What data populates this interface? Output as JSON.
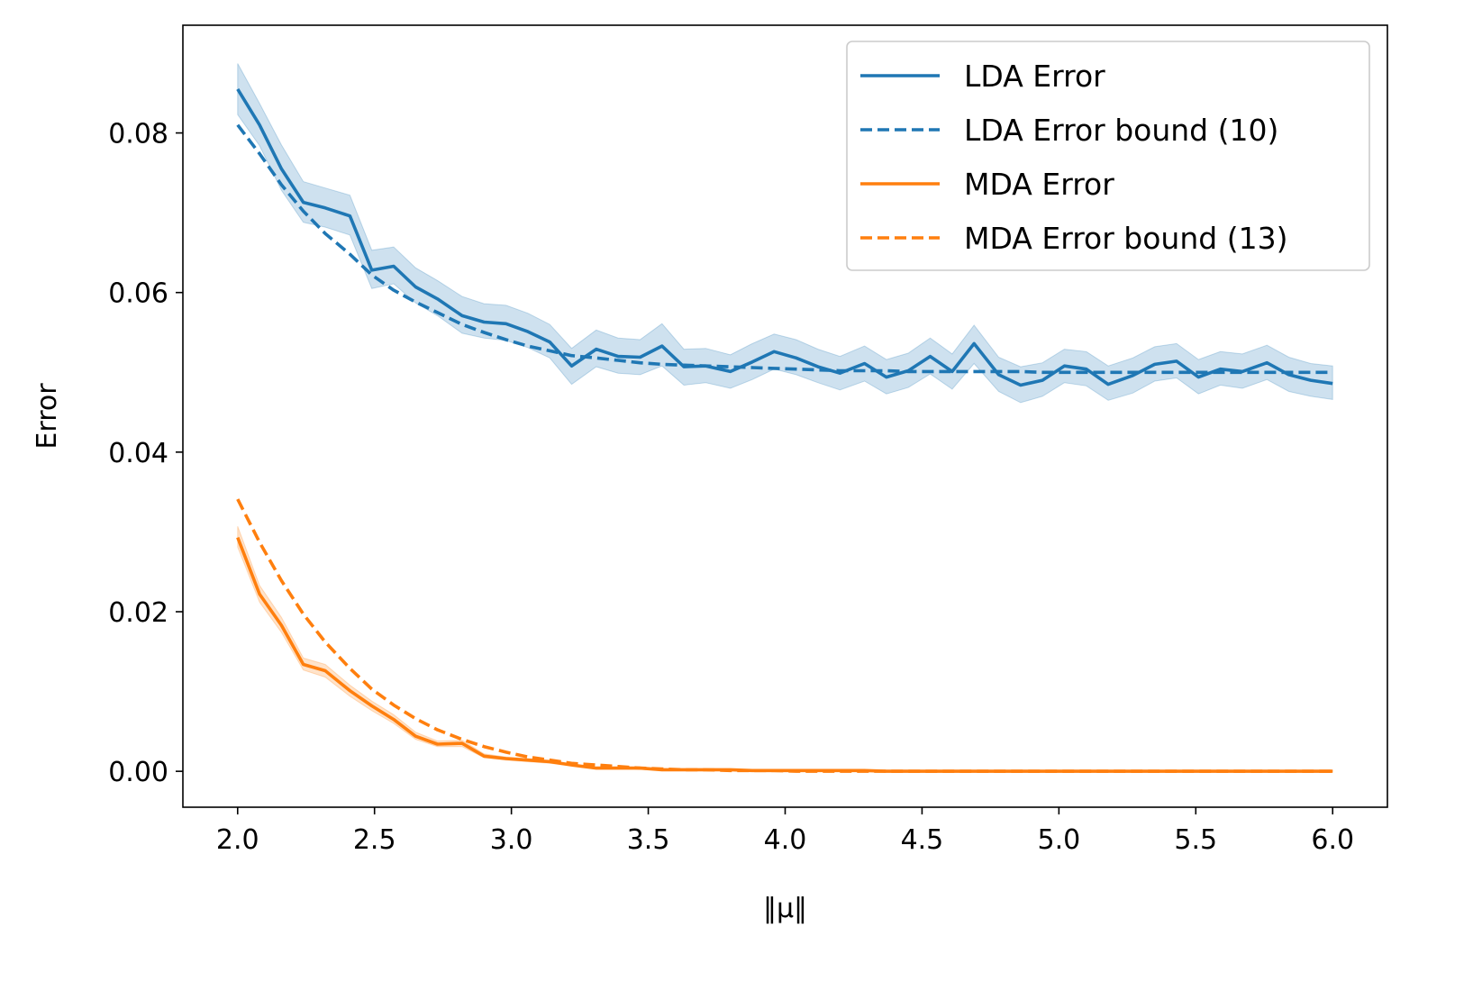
{
  "chart_data": {
    "type": "line",
    "xlabel": "‖μ‖",
    "ylabel": "Error",
    "xlim": [
      1.8,
      6.2
    ],
    "ylim": [
      -0.0045,
      0.0935
    ],
    "x_ticks": [
      "2.0",
      "2.5",
      "3.0",
      "3.5",
      "4.0",
      "4.5",
      "5.0",
      "5.5",
      "6.0"
    ],
    "x_tick_values": [
      2.0,
      2.5,
      3.0,
      3.5,
      4.0,
      4.5,
      5.0,
      5.5,
      6.0
    ],
    "y_ticks": [
      "0.00",
      "0.02",
      "0.04",
      "0.06",
      "0.08"
    ],
    "y_tick_values": [
      0.0,
      0.02,
      0.04,
      0.06,
      0.08
    ],
    "legend_position": "top-right",
    "grid": false,
    "x": [
      2.0,
      2.08,
      2.16,
      2.24,
      2.32,
      2.41,
      2.49,
      2.57,
      2.65,
      2.73,
      2.82,
      2.9,
      2.98,
      3.06,
      3.14,
      3.22,
      3.31,
      3.39,
      3.47,
      3.55,
      3.63,
      3.71,
      3.8,
      3.88,
      3.96,
      4.04,
      4.12,
      4.2,
      4.29,
      4.37,
      4.45,
      4.53,
      4.61,
      4.69,
      4.78,
      4.86,
      4.94,
      5.02,
      5.1,
      5.18,
      5.27,
      5.35,
      5.43,
      5.51,
      5.59,
      5.67,
      5.76,
      5.84,
      5.92,
      6.0
    ],
    "series": [
      {
        "name": "LDA Error",
        "color": "#1f77b4",
        "style": "solid",
        "values": [
          0.0855,
          0.081,
          0.0755,
          0.0713,
          0.0706,
          0.0696,
          0.0628,
          0.0633,
          0.0607,
          0.0592,
          0.0571,
          0.0563,
          0.0561,
          0.0551,
          0.0538,
          0.0508,
          0.0529,
          0.052,
          0.0519,
          0.0533,
          0.0507,
          0.0508,
          0.0501,
          0.0513,
          0.0526,
          0.0518,
          0.0507,
          0.0499,
          0.0511,
          0.0494,
          0.0502,
          0.052,
          0.0501,
          0.0536,
          0.0497,
          0.0484,
          0.049,
          0.0508,
          0.0504,
          0.0485,
          0.0496,
          0.051,
          0.0514,
          0.0494,
          0.0504,
          0.0501,
          0.0512,
          0.0497,
          0.049,
          0.0486
        ],
        "band_lower": [
          0.0823,
          0.0784,
          0.0728,
          0.0688,
          0.0682,
          0.0672,
          0.0605,
          0.0611,
          0.0587,
          0.0571,
          0.0549,
          0.0543,
          0.054,
          0.0531,
          0.0518,
          0.0485,
          0.0507,
          0.0499,
          0.0497,
          0.0508,
          0.0484,
          0.0487,
          0.048,
          0.0491,
          0.0504,
          0.0497,
          0.0487,
          0.0478,
          0.0489,
          0.0473,
          0.0481,
          0.0498,
          0.0479,
          0.0511,
          0.0476,
          0.0462,
          0.047,
          0.0487,
          0.0483,
          0.0465,
          0.0474,
          0.0489,
          0.0493,
          0.0473,
          0.0484,
          0.048,
          0.0491,
          0.0476,
          0.047,
          0.0466
        ],
        "band_upper": [
          0.0887,
          0.0837,
          0.0785,
          0.0739,
          0.0731,
          0.0722,
          0.0653,
          0.0657,
          0.0631,
          0.0615,
          0.0595,
          0.0586,
          0.0584,
          0.0574,
          0.056,
          0.053,
          0.0553,
          0.0543,
          0.0541,
          0.0561,
          0.0529,
          0.053,
          0.0522,
          0.0536,
          0.0548,
          0.0541,
          0.0529,
          0.052,
          0.0533,
          0.0516,
          0.0524,
          0.0543,
          0.0523,
          0.0559,
          0.0519,
          0.0507,
          0.0512,
          0.0529,
          0.0526,
          0.0508,
          0.0518,
          0.0532,
          0.0536,
          0.0516,
          0.0526,
          0.0523,
          0.0534,
          0.0519,
          0.0511,
          0.0508
        ]
      },
      {
        "name": "LDA Error bound (10)",
        "color": "#1f77b4",
        "style": "dashed",
        "values": [
          0.081,
          0.0774,
          0.0735,
          0.0702,
          0.0674,
          0.0648,
          0.0622,
          0.0603,
          0.0588,
          0.0575,
          0.056,
          0.055,
          0.0541,
          0.0533,
          0.0527,
          0.0521,
          0.0518,
          0.0515,
          0.0512,
          0.051,
          0.0509,
          0.0508,
          0.0507,
          0.0506,
          0.0505,
          0.0504,
          0.0503,
          0.0502,
          0.0502,
          0.0502,
          0.0501,
          0.0501,
          0.0501,
          0.0501,
          0.0501,
          0.0501,
          0.05,
          0.05,
          0.05,
          0.05,
          0.05,
          0.05,
          0.05,
          0.05,
          0.05,
          0.05,
          0.05,
          0.05,
          0.05,
          0.05
        ]
      },
      {
        "name": "MDA Error",
        "color": "#ff7f0e",
        "style": "solid",
        "values": [
          0.0293,
          0.0222,
          0.0183,
          0.0134,
          0.0126,
          0.0101,
          0.0082,
          0.0065,
          0.0044,
          0.0034,
          0.0035,
          0.0019,
          0.0016,
          0.0014,
          0.0012,
          0.0008,
          0.0004,
          0.0004,
          0.0004,
          0.0002,
          0.0002,
          0.0002,
          0.0002,
          0.0001,
          0.0001,
          0.0001,
          0.0001,
          0.0001,
          0.0001,
          0.0,
          0.0,
          0.0,
          0.0,
          0.0,
          0.0,
          0.0,
          0.0,
          0.0,
          0.0,
          0.0,
          0.0,
          0.0,
          0.0,
          0.0,
          0.0,
          0.0,
          0.0,
          0.0,
          0.0,
          0.0
        ],
        "band_lower": [
          0.0281,
          0.0212,
          0.0174,
          0.0127,
          0.0118,
          0.0094,
          0.0076,
          0.006,
          0.004,
          0.0031,
          0.0031,
          0.0017,
          0.0014,
          0.0012,
          0.001,
          0.0007,
          0.0003,
          0.0003,
          0.0003,
          0.0001,
          0.0001,
          0.0001,
          0.0001,
          0.0,
          0.0,
          0.0,
          0.0,
          0.0,
          0.0,
          0.0,
          0.0,
          0.0,
          0.0,
          0.0,
          0.0,
          0.0,
          0.0,
          0.0,
          0.0,
          0.0,
          0.0,
          0.0,
          0.0,
          0.0,
          0.0,
          0.0,
          0.0,
          0.0,
          0.0,
          0.0
        ],
        "band_upper": [
          0.0307,
          0.0233,
          0.0193,
          0.0142,
          0.0134,
          0.0108,
          0.0088,
          0.0071,
          0.0049,
          0.0038,
          0.0039,
          0.0022,
          0.0018,
          0.0016,
          0.0014,
          0.0009,
          0.0005,
          0.0005,
          0.0005,
          0.0003,
          0.0003,
          0.0003,
          0.0003,
          0.0002,
          0.0002,
          0.0002,
          0.0002,
          0.0002,
          0.0002,
          0.0001,
          0.0001,
          0.0001,
          0.0001,
          0.0001,
          0.0001,
          0.0001,
          0.0001,
          0.0001,
          0.0001,
          0.0001,
          0.0001,
          0.0001,
          0.0001,
          0.0001,
          0.0001,
          0.0001,
          0.0001,
          0.0001,
          0.0001,
          0.0001
        ]
      },
      {
        "name": "MDA Error bound (13)",
        "color": "#ff7f0e",
        "style": "dashed",
        "values": [
          0.0341,
          0.0287,
          0.0239,
          0.0197,
          0.0162,
          0.0129,
          0.0103,
          0.0083,
          0.0066,
          0.0052,
          0.004,
          0.0031,
          0.0024,
          0.0018,
          0.0014,
          0.001,
          0.0008,
          0.0006,
          0.0004,
          0.0003,
          0.0002,
          0.0002,
          0.0001,
          0.0001,
          0.0001,
          0.0,
          0.0,
          0.0,
          0.0,
          0.0,
          0.0,
          0.0,
          0.0,
          0.0,
          0.0,
          0.0,
          0.0,
          0.0,
          0.0,
          0.0,
          0.0,
          0.0,
          0.0,
          0.0,
          0.0,
          0.0,
          0.0,
          0.0,
          0.0,
          0.0
        ]
      }
    ]
  }
}
